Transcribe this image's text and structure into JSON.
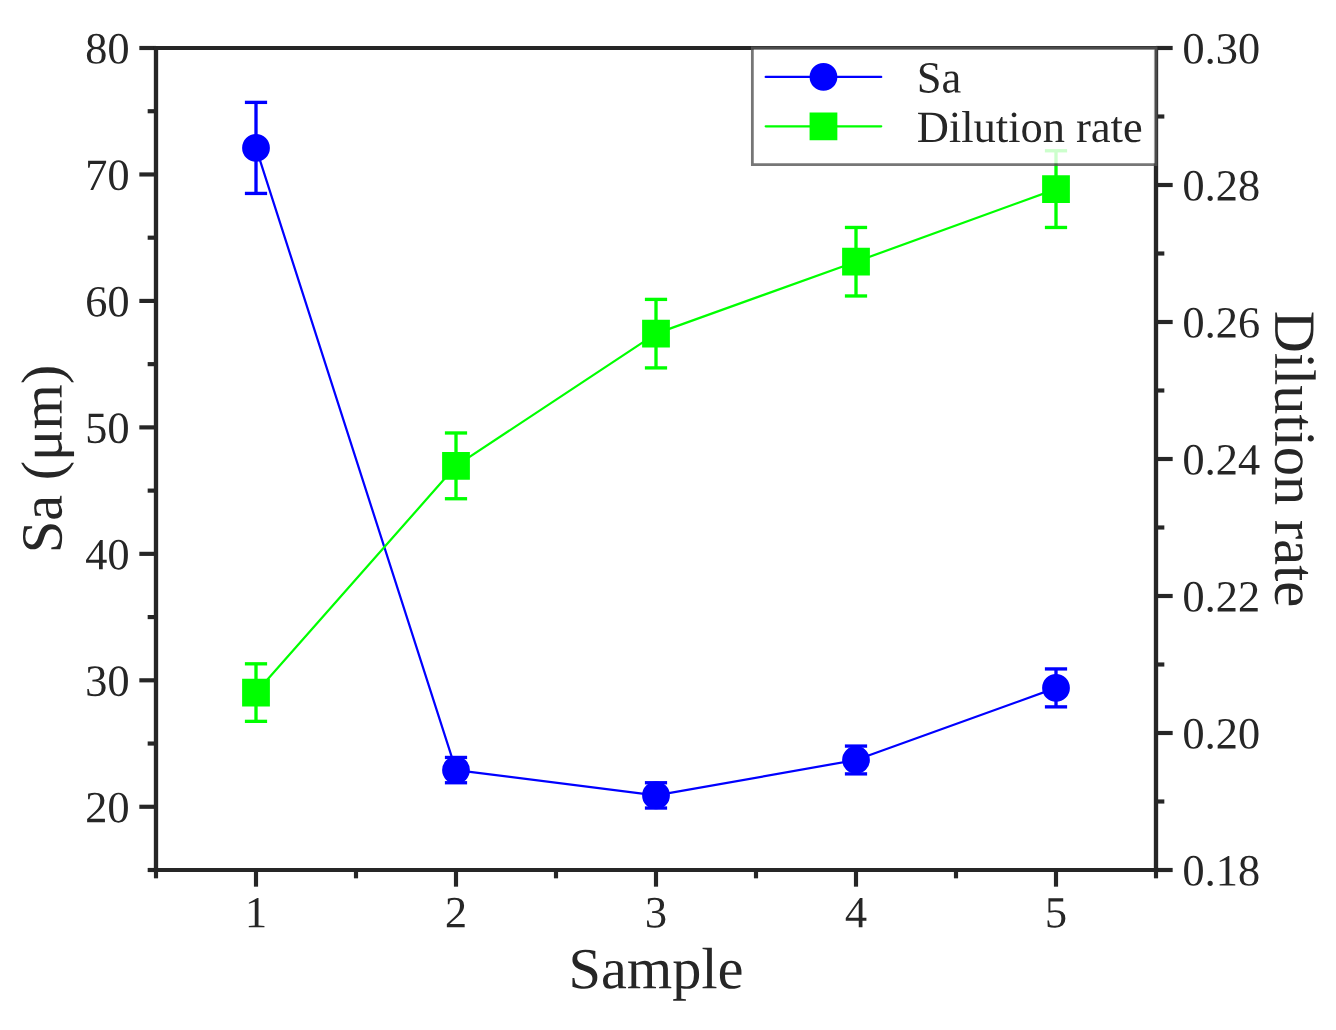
{
  "chart_data": {
    "type": "line",
    "xlabel": "Sample",
    "ylabel": "Sa (μm)",
    "y2label": "Dilution rate",
    "x": [
      1,
      2,
      3,
      4,
      5
    ],
    "series": [
      {
        "name": "Sa",
        "color": "#0000ff",
        "marker": "circle",
        "values": [
          72.1,
          22.9,
          20.9,
          23.7,
          29.4
        ],
        "errors": [
          3.6,
          1.0,
          1.0,
          1.1,
          1.5
        ]
      },
      {
        "name": "Dilution rate",
        "color": "#00ff00",
        "marker": "square",
        "axis": "y2",
        "values": [
          0.2059,
          0.239,
          0.2583,
          0.2688,
          0.2794
        ],
        "errors": [
          0.0042,
          0.0048,
          0.005,
          0.005,
          0.0056
        ]
      }
    ],
    "xlim": [
      0.5,
      5.5
    ],
    "xticks": [
      1,
      2,
      3,
      4,
      5
    ],
    "ylim": [
      15,
      80
    ],
    "yticks": [
      20,
      30,
      40,
      50,
      60,
      70,
      80
    ],
    "y2lim": [
      0.18,
      0.3
    ],
    "y2ticks": [
      {
        "value": 0.18,
        "label": "0.18"
      },
      {
        "value": 0.2,
        "label": "0.20"
      },
      {
        "value": 0.22,
        "label": "0.22"
      },
      {
        "value": 0.24,
        "label": "0.24"
      },
      {
        "value": 0.26,
        "label": "0.26"
      },
      {
        "value": 0.28,
        "label": "0.28"
      },
      {
        "value": 0.3,
        "label": "0.30"
      }
    ],
    "grid": false,
    "legend": "top right",
    "line_style": "solid"
  }
}
